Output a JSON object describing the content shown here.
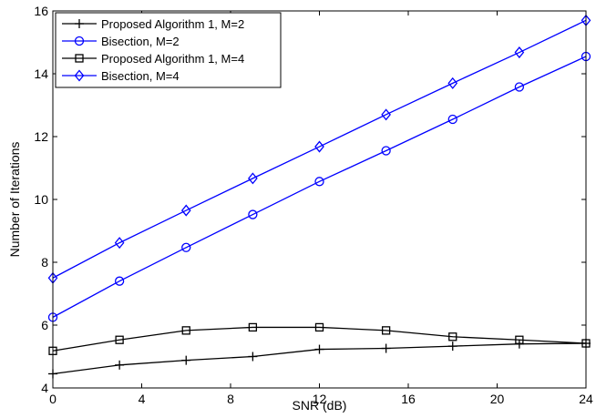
{
  "chart_data": {
    "type": "line",
    "xlabel": "SNR (dB)",
    "ylabel": "Number of Iterations",
    "xlim": [
      0,
      24
    ],
    "ylim": [
      4,
      16
    ],
    "xticks": [
      0,
      4,
      8,
      12,
      16,
      20,
      24
    ],
    "yticks": [
      4,
      6,
      8,
      10,
      12,
      14,
      16
    ],
    "grid": false,
    "legend_position": "top-left",
    "x": [
      0,
      3,
      6,
      9,
      12,
      15,
      18,
      21,
      24
    ],
    "series": [
      {
        "name": "Proposed Algorithm 1, M=2",
        "marker": "plus",
        "color": "#000000",
        "values": [
          4.45,
          4.73,
          4.88,
          5.0,
          5.23,
          5.26,
          5.33,
          5.4,
          5.42
        ]
      },
      {
        "name": "Bisection, M=2",
        "marker": "circle",
        "color": "#0000ff",
        "values": [
          6.25,
          7.4,
          8.47,
          9.52,
          10.57,
          11.55,
          12.55,
          13.58,
          14.55
        ]
      },
      {
        "name": "Proposed Algorithm 1, M=4",
        "marker": "square",
        "color": "#000000",
        "values": [
          5.18,
          5.53,
          5.83,
          5.93,
          5.93,
          5.83,
          5.63,
          5.53,
          5.42
        ]
      },
      {
        "name": "Bisection, M=4",
        "marker": "diamond",
        "color": "#0000ff",
        "values": [
          7.5,
          8.62,
          9.65,
          10.67,
          11.68,
          12.7,
          13.7,
          14.68,
          15.7
        ]
      }
    ]
  }
}
